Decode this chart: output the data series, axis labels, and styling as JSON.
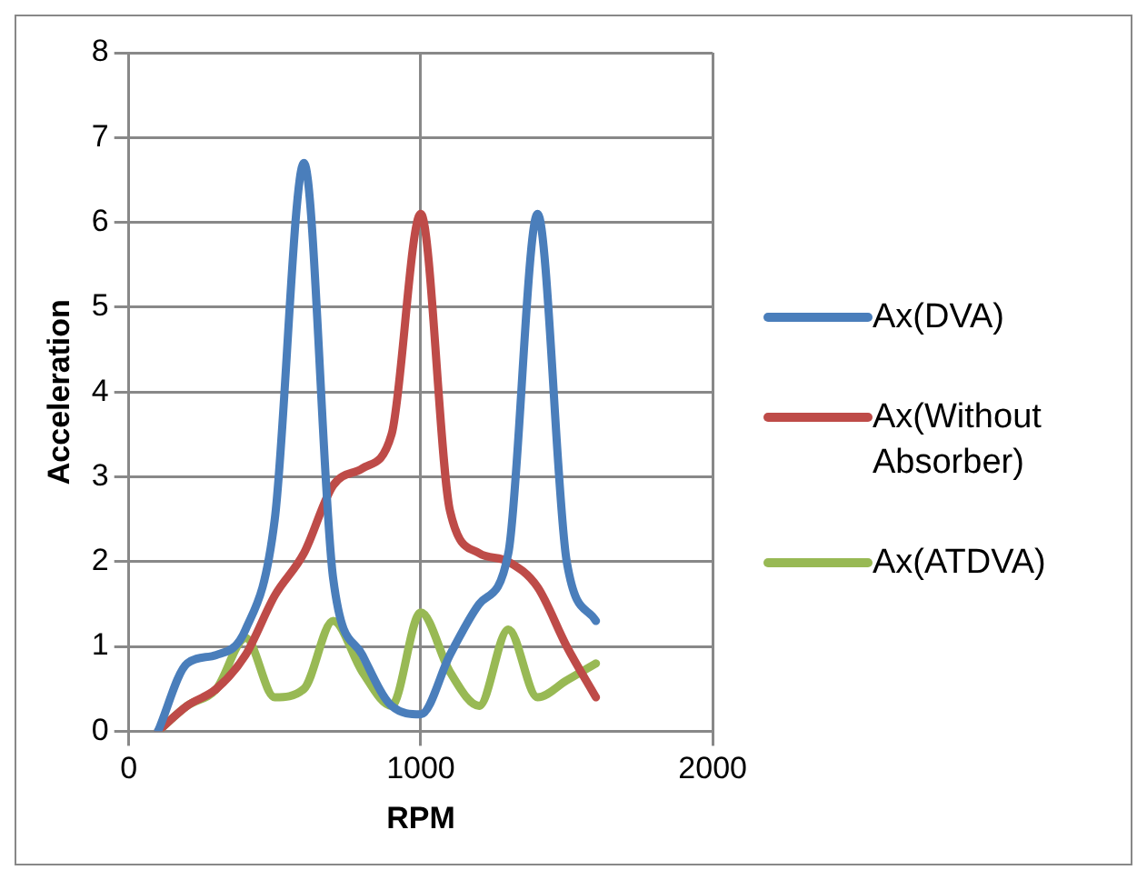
{
  "chart_data": {
    "type": "line",
    "xlabel": "RPM",
    "ylabel": "Acceleration",
    "x": [
      100,
      200,
      300,
      400,
      500,
      600,
      700,
      800,
      900,
      1000,
      1100,
      1200,
      1300,
      1400,
      1500,
      1600
    ],
    "series": [
      {
        "name": "Ax(DVA)",
        "color": "#4a7ebb",
        "values": [
          0,
          0.8,
          0.9,
          1.2,
          2.5,
          6.7,
          1.8,
          0.9,
          0.3,
          0.2,
          0.9,
          1.5,
          2.1,
          6.1,
          2.0,
          1.3
        ]
      },
      {
        "name": "Ax(Without Absorber)",
        "color": "#be4b48",
        "values": [
          0,
          0.3,
          0.5,
          0.9,
          1.6,
          2.1,
          2.9,
          3.1,
          3.5,
          6.1,
          2.6,
          2.1,
          2.0,
          1.7,
          1.0,
          0.4
        ]
      },
      {
        "name": "Ax(ATDVA)",
        "color": "#98b954",
        "values": [
          0,
          0.3,
          0.5,
          1.1,
          0.4,
          0.5,
          1.3,
          0.7,
          0.3,
          1.4,
          0.7,
          0.3,
          1.2,
          0.4,
          0.6,
          0.8
        ]
      }
    ],
    "xlim": [
      0,
      2000
    ],
    "xticks": [
      0,
      1000,
      2000
    ],
    "ylim": [
      0,
      8
    ],
    "yticks": [
      0,
      1,
      2,
      3,
      4,
      5,
      6,
      7,
      8
    ],
    "grid": true,
    "legend": "right",
    "marker": "none",
    "line_style": "solid"
  }
}
